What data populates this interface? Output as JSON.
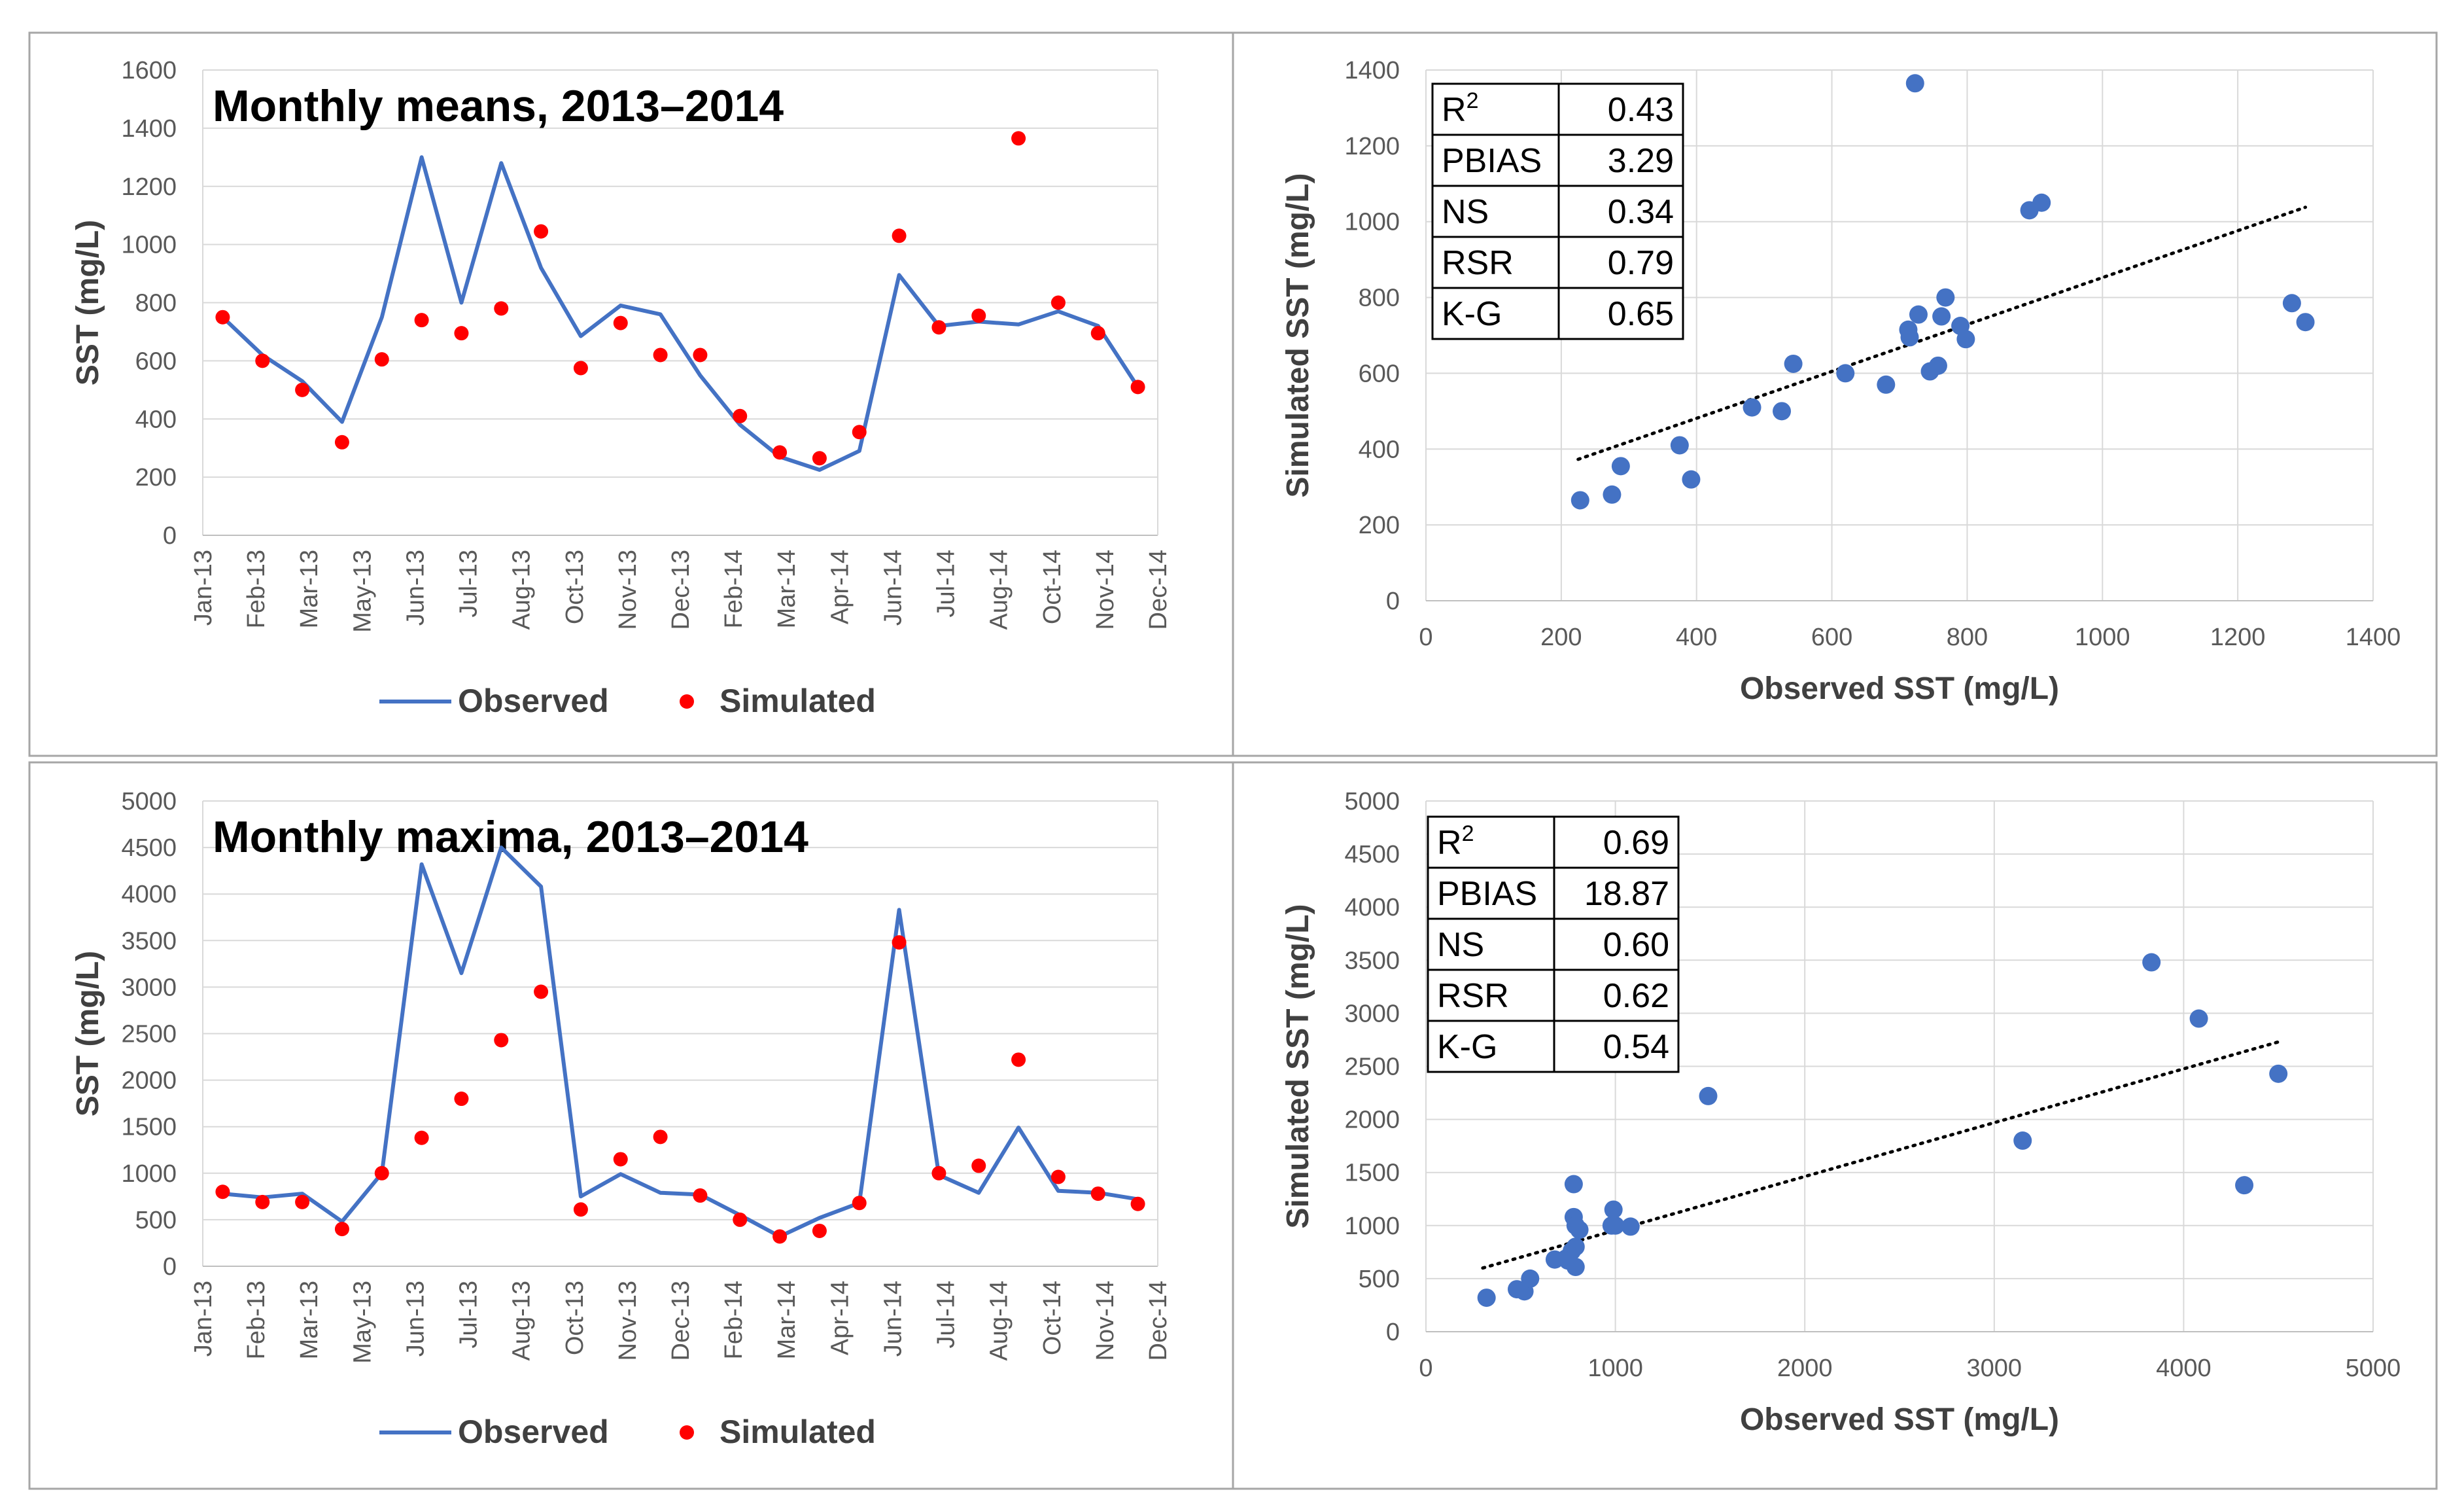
{
  "chart_data": [
    {
      "id": "means_ts",
      "type": "line",
      "title": "Monthly means, 2013–2014",
      "xlabel": "",
      "ylabel": "SST (mg/L)",
      "ylim": [
        0,
        1600
      ],
      "yticks": [
        0,
        200,
        400,
        600,
        800,
        1000,
        1200,
        1400,
        1600
      ],
      "tick_labels": [
        "Jan-13",
        "Feb-13",
        "Mar-13",
        "May-13",
        "Jun-13",
        "Jul-13",
        "Aug-13",
        "Oct-13",
        "Nov-13",
        "Dec-13",
        "Feb-14",
        "Mar-14",
        "Apr-14",
        "Jun-14",
        "Jul-14",
        "Aug-14",
        "Oct-14",
        "Nov-14",
        "Dec-14"
      ],
      "grid": true,
      "legend": {
        "position": "bottom",
        "observed_label": "Observed",
        "simulated_label": "Simulated"
      },
      "series": [
        {
          "name": "Observed",
          "style": "line",
          "color": "#4472C4",
          "values": [
            750,
            620,
            530,
            390,
            750,
            1300,
            800,
            1280,
            920,
            685,
            790,
            760,
            550,
            380,
            270,
            225,
            290,
            895,
            720,
            735,
            725,
            770,
            720,
            510
          ]
        },
        {
          "name": "Simulated",
          "style": "points",
          "color": "#FF0000",
          "values": [
            750,
            600,
            500,
            320,
            605,
            740,
            695,
            780,
            1045,
            575,
            730,
            620,
            620,
            410,
            285,
            265,
            355,
            1030,
            715,
            755,
            1365,
            800,
            695,
            510
          ]
        }
      ]
    },
    {
      "id": "means_scatter",
      "type": "scatter",
      "title": "",
      "xlabel": "Observed SST (mg/L)",
      "ylabel": "Simulated SST (mg/L)",
      "xlim": [
        0,
        1400
      ],
      "ylim": [
        0,
        1400
      ],
      "xticks": [
        0,
        200,
        400,
        600,
        800,
        1000,
        1200,
        1400
      ],
      "yticks": [
        0,
        200,
        400,
        600,
        800,
        1000,
        1200,
        1400
      ],
      "grid": true,
      "color": "#4472C4",
      "points": [
        [
          228,
          265
        ],
        [
          275,
          280
        ],
        [
          288,
          355
        ],
        [
          375,
          410
        ],
        [
          392,
          320
        ],
        [
          482,
          510
        ],
        [
          526,
          500
        ],
        [
          543,
          625
        ],
        [
          620,
          600
        ],
        [
          680,
          570
        ],
        [
          713,
          715
        ],
        [
          715,
          695
        ],
        [
          723,
          1365
        ],
        [
          728,
          755
        ],
        [
          745,
          605
        ],
        [
          757,
          620
        ],
        [
          762,
          750
        ],
        [
          768,
          800
        ],
        [
          790,
          725
        ],
        [
          798,
          690
        ],
        [
          892,
          1030
        ],
        [
          910,
          1050
        ],
        [
          1280,
          785
        ],
        [
          1300,
          735
        ]
      ],
      "trendline": {
        "x0": 225,
        "y0": 373,
        "x1": 1300,
        "y1": 1038
      },
      "stats": [
        {
          "label": "R",
          "sup": "2",
          "value": "0.43"
        },
        {
          "label": "PBIAS",
          "sup": "",
          "value": "3.29"
        },
        {
          "label": "NS",
          "sup": "",
          "value": "0.34"
        },
        {
          "label": "RSR",
          "sup": "",
          "value": "0.79"
        },
        {
          "label": "K-G",
          "sup": "",
          "value": "0.65"
        }
      ]
    },
    {
      "id": "maxima_ts",
      "type": "line",
      "title": "Monthly maxima, 2013–2014",
      "xlabel": "",
      "ylabel": "SST (mg/L)",
      "ylim": [
        0,
        5000
      ],
      "yticks": [
        0,
        500,
        1000,
        1500,
        2000,
        2500,
        3000,
        3500,
        4000,
        4500,
        5000
      ],
      "tick_labels": [
        "Jan-13",
        "Feb-13",
        "Mar-13",
        "May-13",
        "Jun-13",
        "Jul-13",
        "Aug-13",
        "Oct-13",
        "Nov-13",
        "Dec-13",
        "Feb-14",
        "Mar-14",
        "Apr-14",
        "Jun-14",
        "Jul-14",
        "Aug-14",
        "Oct-14",
        "Nov-14",
        "Dec-14"
      ],
      "grid": true,
      "legend": {
        "position": "bottom",
        "observed_label": "Observed",
        "simulated_label": "Simulated"
      },
      "series": [
        {
          "name": "Observed",
          "style": "line",
          "color": "#4472C4",
          "values": [
            780,
            740,
            780,
            480,
            1000,
            4320,
            3150,
            4500,
            4080,
            750,
            990,
            790,
            770,
            550,
            320,
            520,
            680,
            3830,
            980,
            790,
            1490,
            810,
            790,
            720
          ]
        },
        {
          "name": "Simulated",
          "style": "points",
          "color": "#FF0000",
          "values": [
            800,
            690,
            690,
            400,
            1000,
            1380,
            1800,
            2430,
            2950,
            610,
            1150,
            1390,
            760,
            500,
            320,
            380,
            680,
            3480,
            1000,
            1080,
            2220,
            960,
            780,
            670
          ]
        }
      ]
    },
    {
      "id": "maxima_scatter",
      "type": "scatter",
      "title": "",
      "xlabel": "Observed SST (mg/L)",
      "ylabel": "Simulated SST (mg/L)",
      "xlim": [
        0,
        5000
      ],
      "ylim": [
        0,
        5000
      ],
      "xticks": [
        0,
        1000,
        2000,
        3000,
        4000,
        5000
      ],
      "yticks": [
        0,
        500,
        1000,
        1500,
        2000,
        2500,
        3000,
        3500,
        4000,
        4500,
        5000
      ],
      "grid": true,
      "color": "#4472C4",
      "points": [
        [
          320,
          320
        ],
        [
          480,
          400
        ],
        [
          520,
          380
        ],
        [
          550,
          500
        ],
        [
          680,
          680
        ],
        [
          740,
          690
        ],
        [
          770,
          760
        ],
        [
          780,
          1080
        ],
        [
          790,
          800
        ],
        [
          780,
          1390
        ],
        [
          790,
          1000
        ],
        [
          790,
          610
        ],
        [
          810,
          960
        ],
        [
          980,
          1000
        ],
        [
          990,
          1150
        ],
        [
          1000,
          1000
        ],
        [
          1080,
          990
        ],
        [
          1490,
          2220
        ],
        [
          3150,
          1800
        ],
        [
          3830,
          3480
        ],
        [
          4080,
          2950
        ],
        [
          4320,
          1380
        ],
        [
          4500,
          2430
        ],
        [
          750,
          670
        ]
      ],
      "trendline": {
        "x0": 300,
        "y0": 600,
        "x1": 4500,
        "y1": 2730
      },
      "stats": [
        {
          "label": "R",
          "sup": "2",
          "value": "0.69"
        },
        {
          "label": "PBIAS",
          "sup": "",
          "value": "18.87"
        },
        {
          "label": "NS",
          "sup": "",
          "value": "0.60"
        },
        {
          "label": "RSR",
          "sup": "",
          "value": "0.62"
        },
        {
          "label": "K-G",
          "sup": "",
          "value": "0.54"
        }
      ]
    }
  ]
}
